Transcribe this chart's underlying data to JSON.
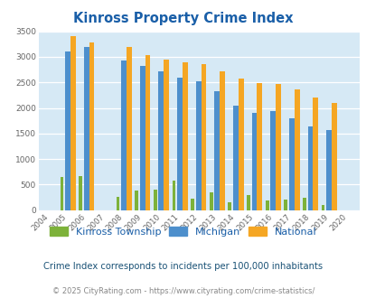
{
  "title": "Kinross Property Crime Index",
  "years": [
    2004,
    2005,
    2006,
    2007,
    2008,
    2009,
    2010,
    2011,
    2012,
    2013,
    2014,
    2015,
    2016,
    2017,
    2018,
    2019,
    2020
  ],
  "kinross": [
    0,
    640,
    660,
    0,
    260,
    390,
    400,
    570,
    220,
    350,
    160,
    290,
    180,
    210,
    240,
    100,
    0
  ],
  "michigan": [
    0,
    3100,
    3200,
    0,
    2930,
    2830,
    2720,
    2600,
    2530,
    2330,
    2050,
    1900,
    1930,
    1800,
    1630,
    1560,
    0
  ],
  "national": [
    0,
    3400,
    3290,
    0,
    3190,
    3040,
    2950,
    2900,
    2860,
    2720,
    2580,
    2490,
    2460,
    2360,
    2200,
    2100,
    0
  ],
  "kinross_color": "#7db23a",
  "michigan_color": "#4d8fcc",
  "national_color": "#f5a623",
  "bg_color": "#d6e9f5",
  "ylim": [
    0,
    3500
  ],
  "yticks": [
    0,
    500,
    1000,
    1500,
    2000,
    2500,
    3000,
    3500
  ],
  "legend_labels": [
    "Kinross Township",
    "Michigan",
    "National"
  ],
  "subtitle": "Crime Index corresponds to incidents per 100,000 inhabitants",
  "footer": "© 2025 CityRating.com - https://www.cityrating.com/crime-statistics/",
  "title_color": "#1a5fa8",
  "subtitle_color": "#1a5276",
  "footer_color": "#888888",
  "tick_label_color": "#666666"
}
